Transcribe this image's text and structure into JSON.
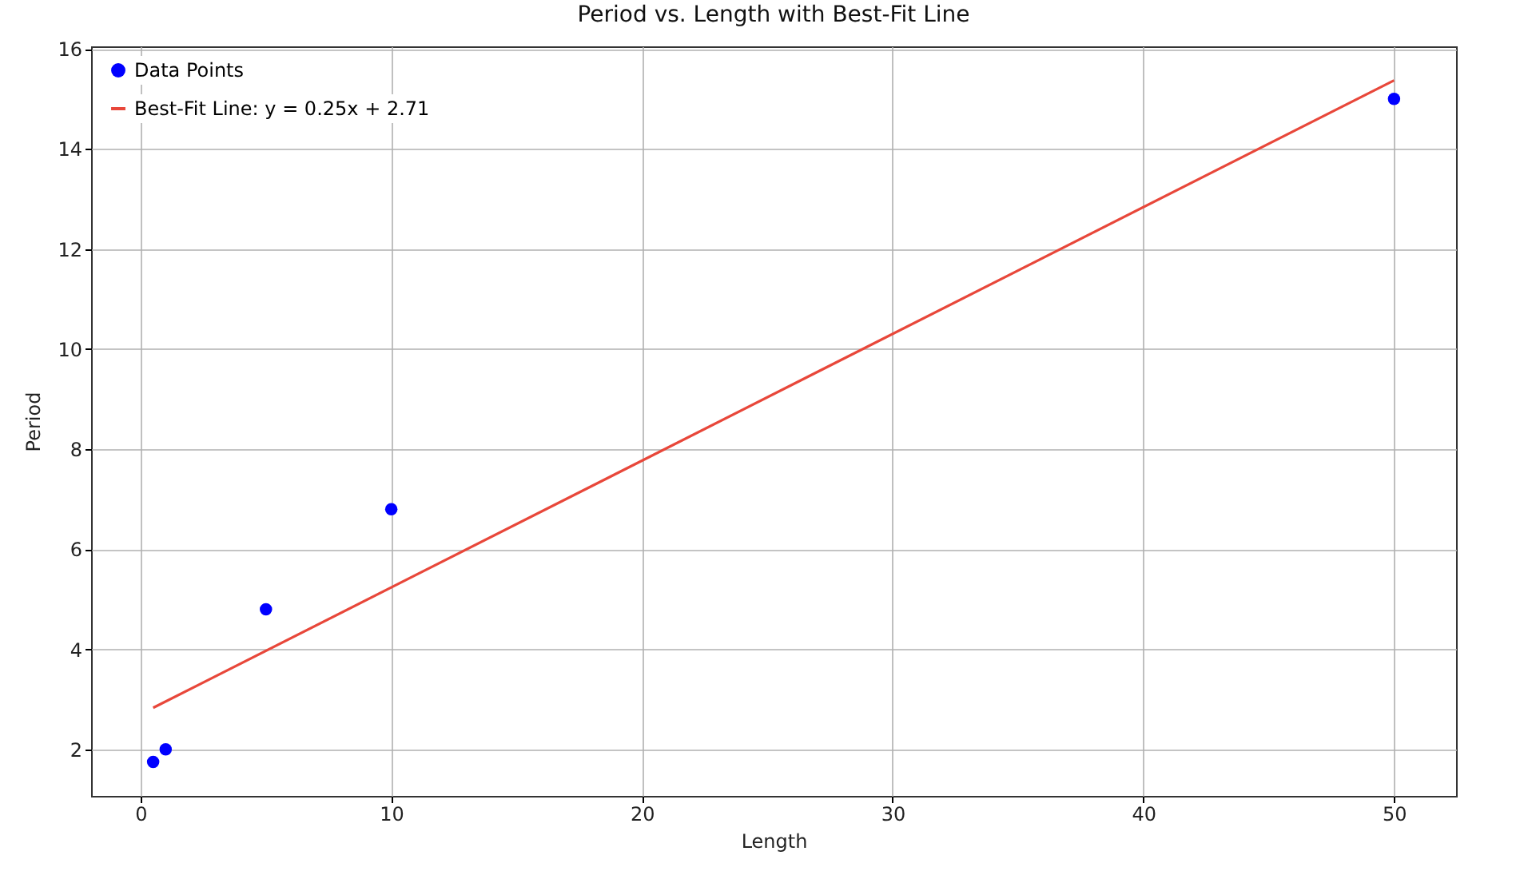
{
  "chart_data": {
    "type": "scatter",
    "title": "Period vs. Length with Best-Fit Line",
    "xlabel": "Length",
    "ylabel": "Period",
    "xlim": [
      -1.975,
      52.475
    ],
    "xticks": [
      0,
      10,
      20,
      30,
      40,
      50
    ],
    "ylim": [
      1.07,
      16.05
    ],
    "yticks": [
      2,
      4,
      6,
      8,
      10,
      12,
      14,
      16
    ],
    "grid": true,
    "legend": "top left",
    "series": [
      {
        "name": "Data Points",
        "color": "#0000ff",
        "marker": "circle",
        "x": [
          0.5,
          1,
          5,
          10,
          50
        ],
        "values": [
          1.75,
          2.0,
          4.8,
          6.8,
          15.0
        ]
      },
      {
        "type": "line",
        "name": "Best-Fit Line: y = 0.25x + 2.71",
        "color": "#e8473a",
        "x": [
          0.5,
          50
        ],
        "values": [
          2.83,
          15.37
        ]
      }
    ]
  }
}
